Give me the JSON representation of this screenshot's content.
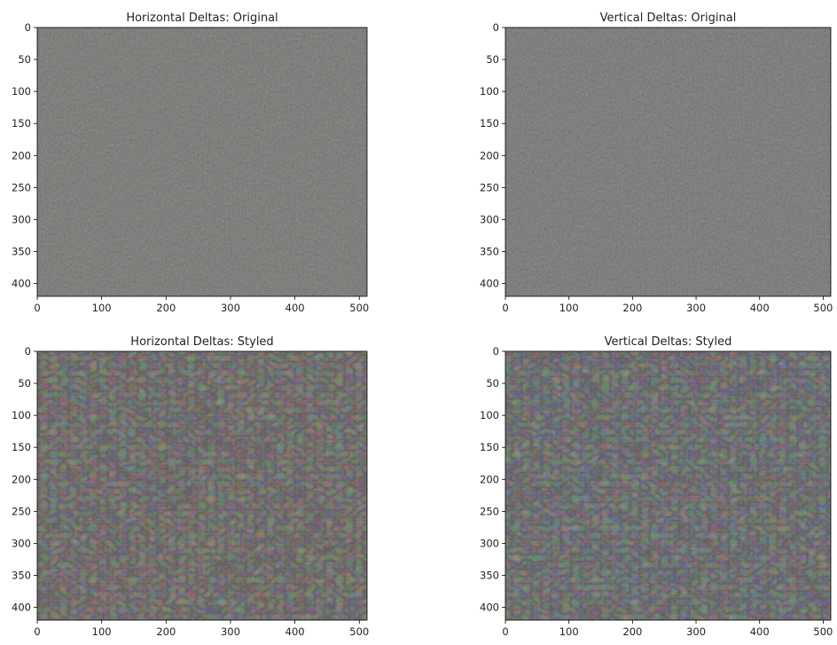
{
  "chart_data": [
    {
      "type": "image",
      "title": "Horizontal Deltas: Original",
      "xlim": [
        0,
        512
      ],
      "ylim": [
        420,
        0
      ],
      "xticks": [
        0,
        100,
        200,
        300,
        400,
        500
      ],
      "yticks": [
        0,
        50,
        100,
        150,
        200,
        250,
        300,
        350,
        400
      ],
      "color": "#7f7f7d"
    },
    {
      "type": "image",
      "title": "Vertical Deltas: Original",
      "xlim": [
        0,
        512
      ],
      "ylim": [
        420,
        0
      ],
      "xticks": [
        0,
        100,
        200,
        300,
        400,
        500
      ],
      "yticks": [
        0,
        50,
        100,
        150,
        200,
        250,
        300,
        350,
        400
      ],
      "color": "#7f7f7f"
    },
    {
      "type": "image",
      "title": "Horizontal Deltas: Styled",
      "xlim": [
        0,
        512
      ],
      "ylim": [
        420,
        0
      ],
      "xticks": [
        0,
        100,
        200,
        300,
        400,
        500
      ],
      "yticks": [
        0,
        50,
        100,
        150,
        200,
        250,
        300,
        350,
        400
      ],
      "color": "#817e7c"
    },
    {
      "type": "image",
      "title": "Vertical Deltas: Styled",
      "xlim": [
        0,
        512
      ],
      "ylim": [
        420,
        0
      ],
      "xticks": [
        0,
        100,
        200,
        300,
        400,
        500
      ],
      "yticks": [
        0,
        50,
        100,
        150,
        200,
        250,
        300,
        350,
        400
      ],
      "color": "#7e7f80"
    }
  ]
}
